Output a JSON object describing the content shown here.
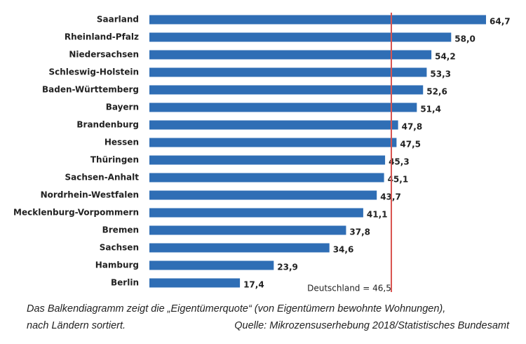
{
  "chart_data": {
    "type": "hbar",
    "categories": [
      "Saarland",
      "Rheinland-Pfalz",
      "Niedersachsen",
      "Schleswig-Holstein",
      "Baden-Württemberg",
      "Bayern",
      "Brandenburg",
      "Hessen",
      "Thüringen",
      "Sachsen-Anhalt",
      "Nordrhein-Westfalen",
      "Mecklenburg-Vorpommern",
      "Bremen",
      "Sachsen",
      "Hamburg",
      "Berlin"
    ],
    "values": [
      64.7,
      58.0,
      54.2,
      53.3,
      52.6,
      51.4,
      47.8,
      47.5,
      45.3,
      45.1,
      43.7,
      41.1,
      37.8,
      34.6,
      23.9,
      17.4
    ],
    "value_labels": [
      "64,7",
      "58,0",
      "54,2",
      "53,3",
      "52,6",
      "51,4",
      "47,8",
      "47,5",
      "45,3",
      "45,1",
      "43,7",
      "41,1",
      "37,8",
      "34,6",
      "23,9",
      "17,4"
    ],
    "color": "#2f6eb5",
    "reference": {
      "value": 46.5,
      "label": "Deutschland = 46,5",
      "color": "#d9534f"
    },
    "caption": {
      "line1": "Das Balkendiagramm zeigt die „Eigentümerquote“ (von Eigentümern bewohnte Wohnungen),",
      "line2_left": "nach Ländern sortiert.",
      "line2_right": "Quelle: Mikrozensuserhebung 2018/Statistisches Bundesamt"
    }
  }
}
